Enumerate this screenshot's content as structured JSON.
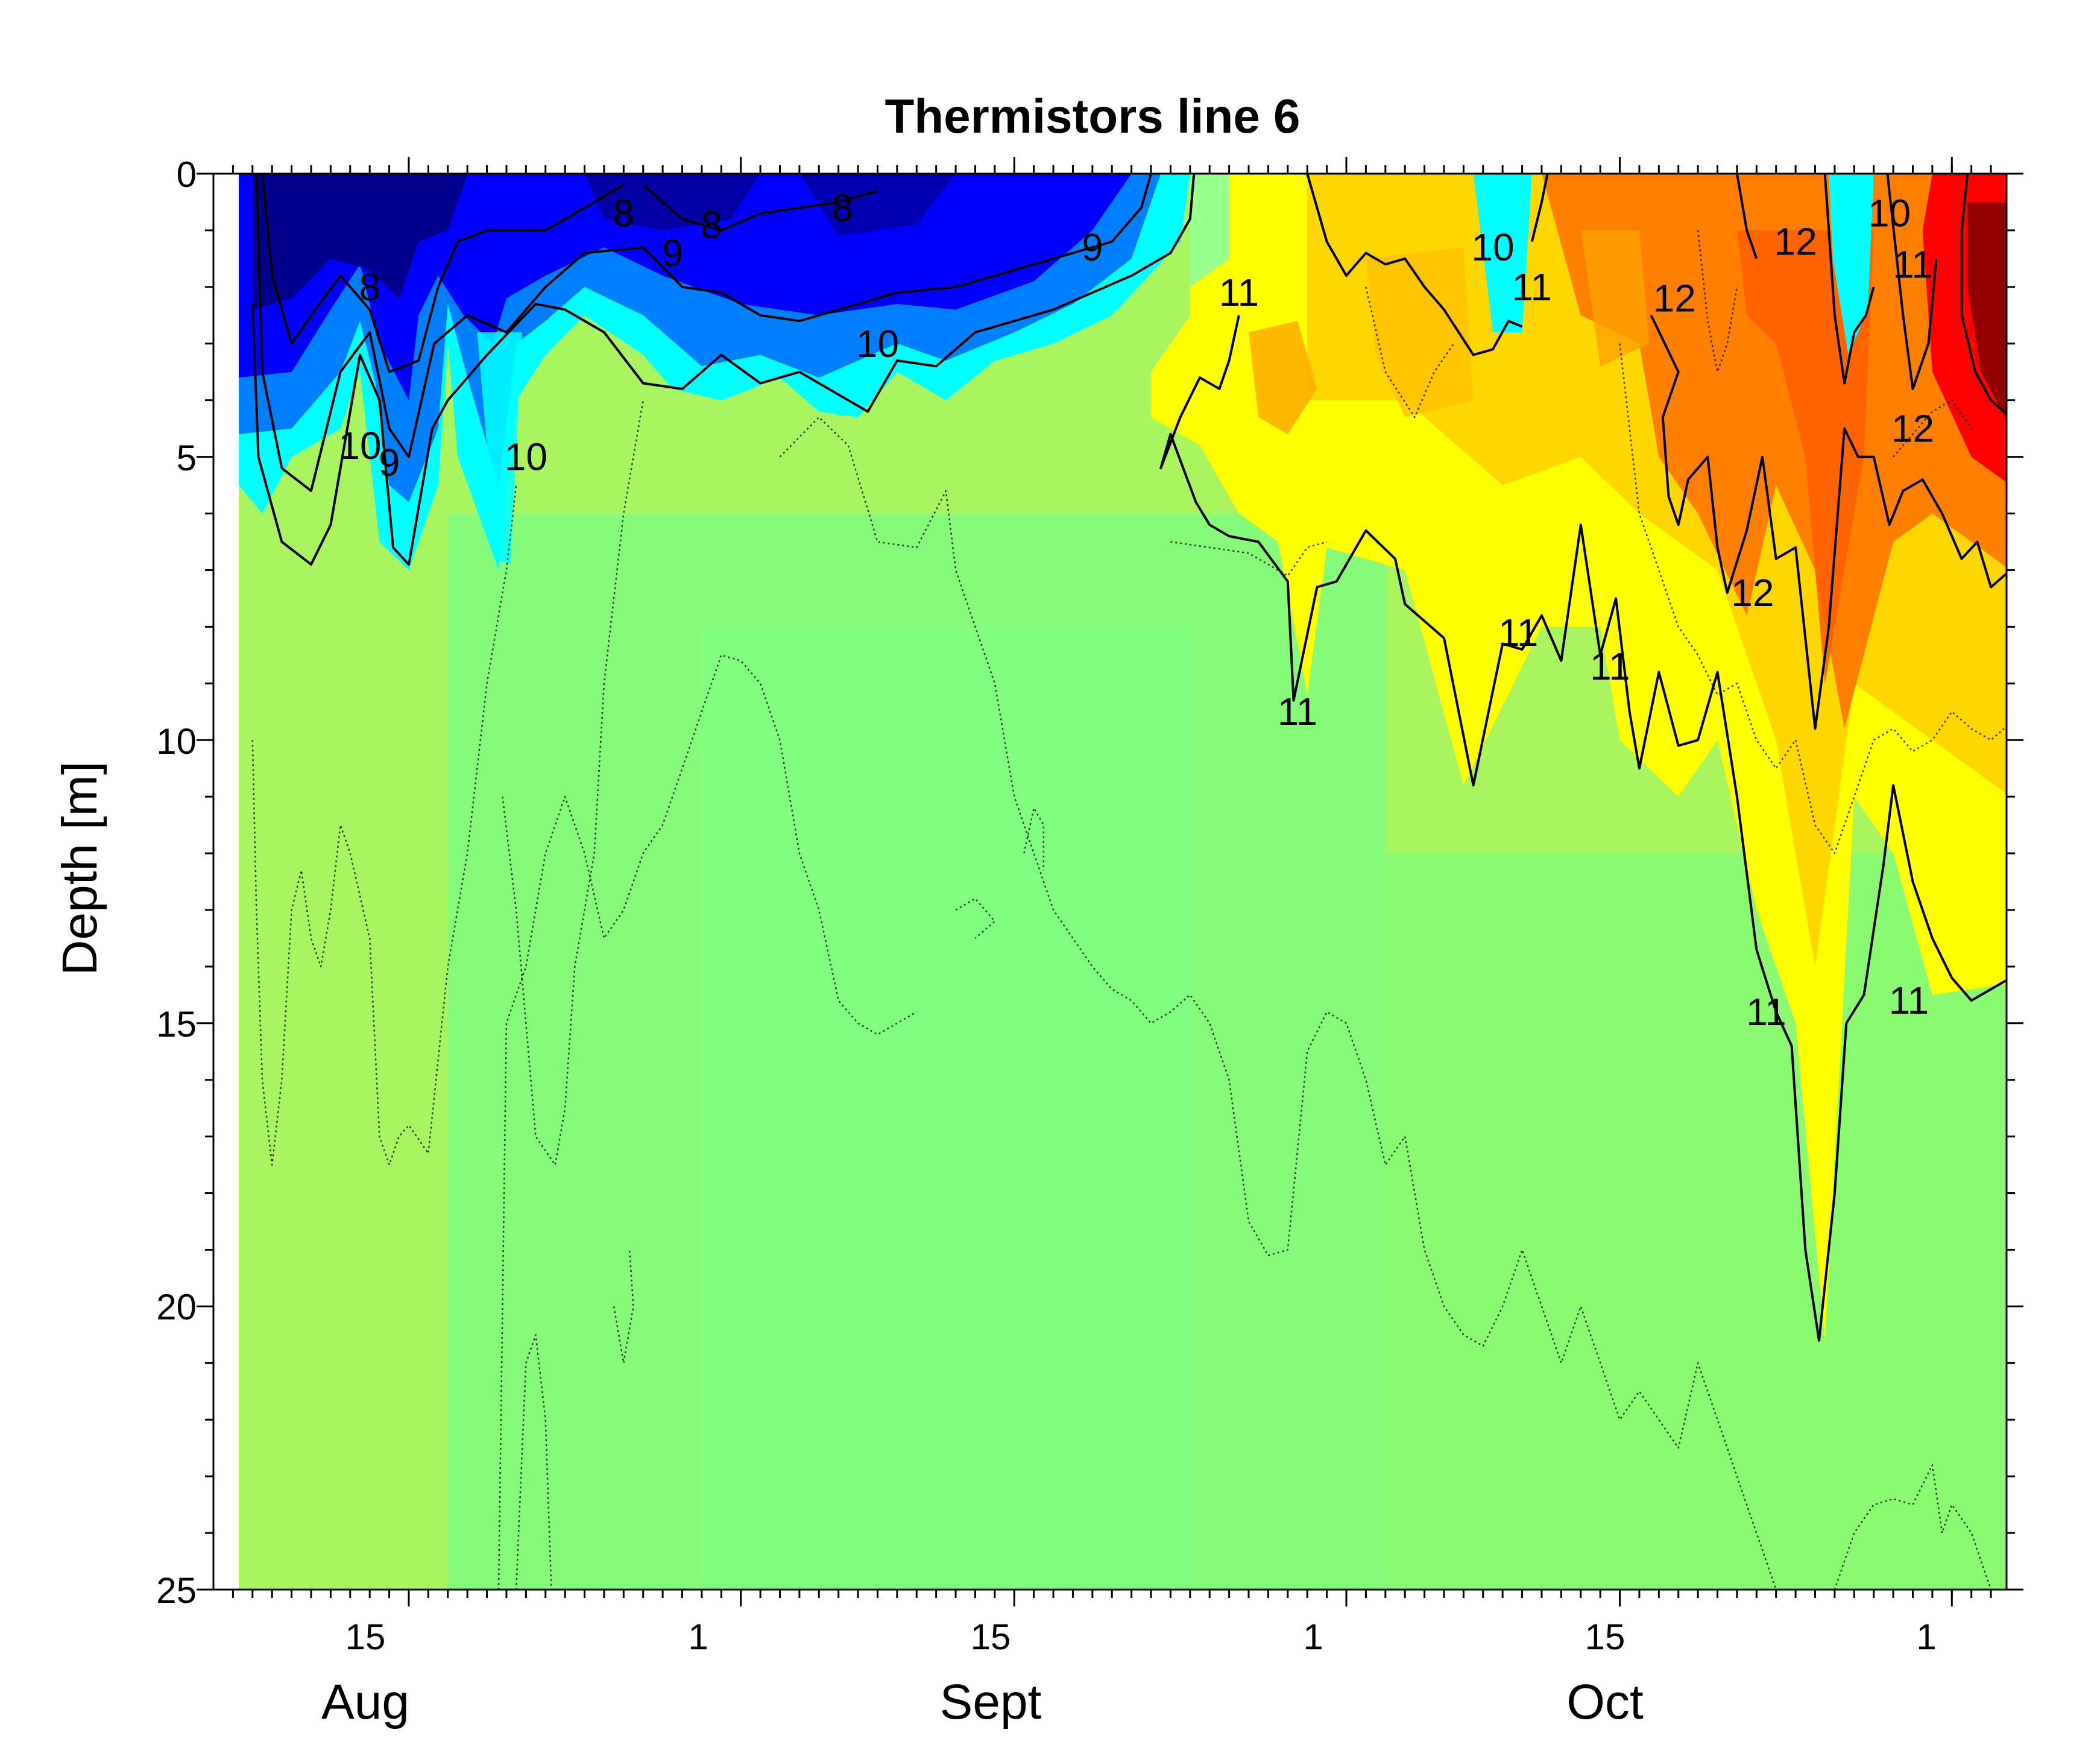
{
  "chart_data": {
    "type": "heatmap",
    "title": "Thermistors line 6",
    "ylabel": "Depth [m]",
    "xlabel": "",
    "ylim": [
      25,
      0
    ],
    "y_ticks": [
      0,
      5,
      10,
      15,
      20,
      25
    ],
    "x_tick_labels": [
      "15",
      "1",
      "15",
      "1",
      "15",
      "1"
    ],
    "month_labels": [
      "Aug",
      "Sept",
      "Oct"
    ],
    "colormap": "jet",
    "color_range": [
      7,
      14
    ],
    "contour_levels_solid": [
      8,
      9,
      10,
      11,
      12
    ],
    "contour_levels_dotted": [
      8.5,
      9.5,
      10.5,
      11.5,
      12.5
    ],
    "contour_labels": [
      {
        "text": "8",
        "day": 8.0,
        "depth": 2.0
      },
      {
        "text": "8",
        "day": 21.0,
        "depth": 0.7
      },
      {
        "text": "8",
        "day": 25.5,
        "depth": 0.9
      },
      {
        "text": "8",
        "day": 32.2,
        "depth": 0.6
      },
      {
        "text": "9",
        "day": 9.0,
        "depth": 5.1
      },
      {
        "text": "9",
        "day": 23.5,
        "depth": 1.4
      },
      {
        "text": "9",
        "day": 45.0,
        "depth": 1.3
      },
      {
        "text": "10",
        "day": 7.5,
        "depth": 4.8
      },
      {
        "text": "10",
        "day": 16.0,
        "depth": 5.0
      },
      {
        "text": "10",
        "day": 34.0,
        "depth": 3.0
      },
      {
        "text": "10",
        "day": 65.5,
        "depth": 1.3
      },
      {
        "text": "10",
        "day": 85.8,
        "depth": 0.7
      },
      {
        "text": "11",
        "day": 52.5,
        "depth": 2.1
      },
      {
        "text": "11",
        "day": 55.5,
        "depth": 9.5
      },
      {
        "text": "11",
        "day": 67.5,
        "depth": 2.0
      },
      {
        "text": "11",
        "day": 66.8,
        "depth": 8.1
      },
      {
        "text": "11",
        "day": 71.5,
        "depth": 8.7
      },
      {
        "text": "11",
        "day": 79.5,
        "depth": 14.8
      },
      {
        "text": "11",
        "day": 86.8,
        "depth": 14.6
      },
      {
        "text": "11",
        "day": 87.0,
        "depth": 1.6
      },
      {
        "text": "12",
        "day": 74.8,
        "depth": 2.2
      },
      {
        "text": "12",
        "day": 78.8,
        "depth": 7.4
      },
      {
        "text": "12",
        "day": 81.0,
        "depth": 1.2
      },
      {
        "text": "12",
        "day": 87.0,
        "depth": 4.5
      }
    ],
    "colors": {
      "c7": "#00007f",
      "c8": "#0000ff",
      "c9": "#0080ff",
      "c10": "#00ffff",
      "c10_5": "#80ff80",
      "c11": "#ffff00",
      "c12": "#ff8000",
      "c13": "#ff0000",
      "c14": "#7f0000"
    }
  }
}
